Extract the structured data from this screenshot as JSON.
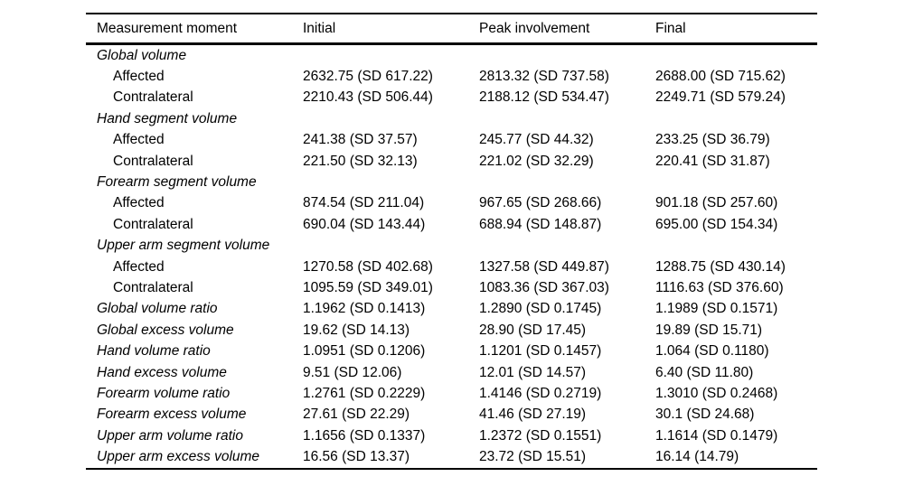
{
  "table": {
    "columns": [
      "Measurement moment",
      "Initial",
      "Peak involvement",
      "Final"
    ],
    "rows": [
      {
        "type": "group",
        "label": "Global volume",
        "values": [
          "",
          "",
          ""
        ]
      },
      {
        "type": "sub",
        "label": "Affected",
        "values": [
          "2632.75 (SD 617.22)",
          "2813.32 (SD 737.58)",
          "2688.00 (SD 715.62)"
        ]
      },
      {
        "type": "sub",
        "label": "Contralateral",
        "values": [
          "2210.43 (SD 506.44)",
          "2188.12 (SD 534.47)",
          "2249.71 (SD 579.24)"
        ]
      },
      {
        "type": "group",
        "label": "Hand segment volume",
        "values": [
          "",
          "",
          ""
        ]
      },
      {
        "type": "sub",
        "label": "Affected",
        "values": [
          "241.38 (SD 37.57)",
          "245.77 (SD 44.32)",
          "233.25 (SD 36.79)"
        ]
      },
      {
        "type": "sub",
        "label": "Contralateral",
        "values": [
          "221.50 (SD 32.13)",
          "221.02 (SD 32.29)",
          "220.41 (SD 31.87)"
        ]
      },
      {
        "type": "group",
        "label": "Forearm segment volume",
        "values": [
          "",
          "",
          ""
        ]
      },
      {
        "type": "sub",
        "label": "Affected",
        "values": [
          "874.54 (SD 211.04)",
          "967.65 (SD 268.66)",
          "901.18 (SD 257.60)"
        ]
      },
      {
        "type": "sub",
        "label": "Contralateral",
        "values": [
          "690.04 (SD 143.44)",
          "688.94 (SD 148.87)",
          "695.00 (SD 154.34)"
        ]
      },
      {
        "type": "group",
        "label": "Upper arm segment volume",
        "values": [
          "",
          "",
          ""
        ]
      },
      {
        "type": "sub",
        "label": "Affected",
        "values": [
          "1270.58 (SD 402.68)",
          "1327.58 (SD 449.87)",
          "1288.75 (SD 430.14)"
        ]
      },
      {
        "type": "sub",
        "label": "Contralateral",
        "values": [
          "1095.59 (SD 349.01)",
          "1083.36 (SD 367.03)",
          "1116.63 (SD 376.60)"
        ]
      },
      {
        "type": "metric",
        "label": "Global volume ratio",
        "values": [
          "1.1962 (SD 0.1413)",
          "1.2890 (SD 0.1745)",
          "1.1989 (SD 0.1571)"
        ]
      },
      {
        "type": "metric",
        "label": "Global excess volume",
        "values": [
          "19.62 (SD 14.13)",
          "28.90 (SD 17.45)",
          "19.89 (SD 15.71)"
        ]
      },
      {
        "type": "metric",
        "label": "Hand volume ratio",
        "values": [
          "1.0951 (SD 0.1206)",
          "1.1201 (SD 0.1457)",
          "1.064 (SD 0.1180)"
        ]
      },
      {
        "type": "metric",
        "label": "Hand excess volume",
        "values": [
          "9.51 (SD 12.06)",
          "12.01 (SD 14.57)",
          "6.40 (SD 11.80)"
        ]
      },
      {
        "type": "metric",
        "label": "Forearm volume ratio",
        "values": [
          "1.2761 (SD 0.2229)",
          "1.4146 (SD 0.2719)",
          "1.3010 (SD 0.2468)"
        ]
      },
      {
        "type": "metric",
        "label": "Forearm excess volume",
        "values": [
          "27.61 (SD 22.29)",
          "41.46 (SD 27.19)",
          "30.1 (SD 24.68)"
        ]
      },
      {
        "type": "metric",
        "label": "Upper arm volume ratio",
        "values": [
          "1.1656 (SD 0.1337)",
          "1.2372 (SD 0.1551)",
          "1.1614 (SD 0.1479)"
        ]
      },
      {
        "type": "metric",
        "label": "Upper arm excess volume",
        "values": [
          "16.56 (SD 13.37)",
          "23.72 (SD 15.51)",
          "16.14 (14.79)"
        ]
      }
    ]
  }
}
